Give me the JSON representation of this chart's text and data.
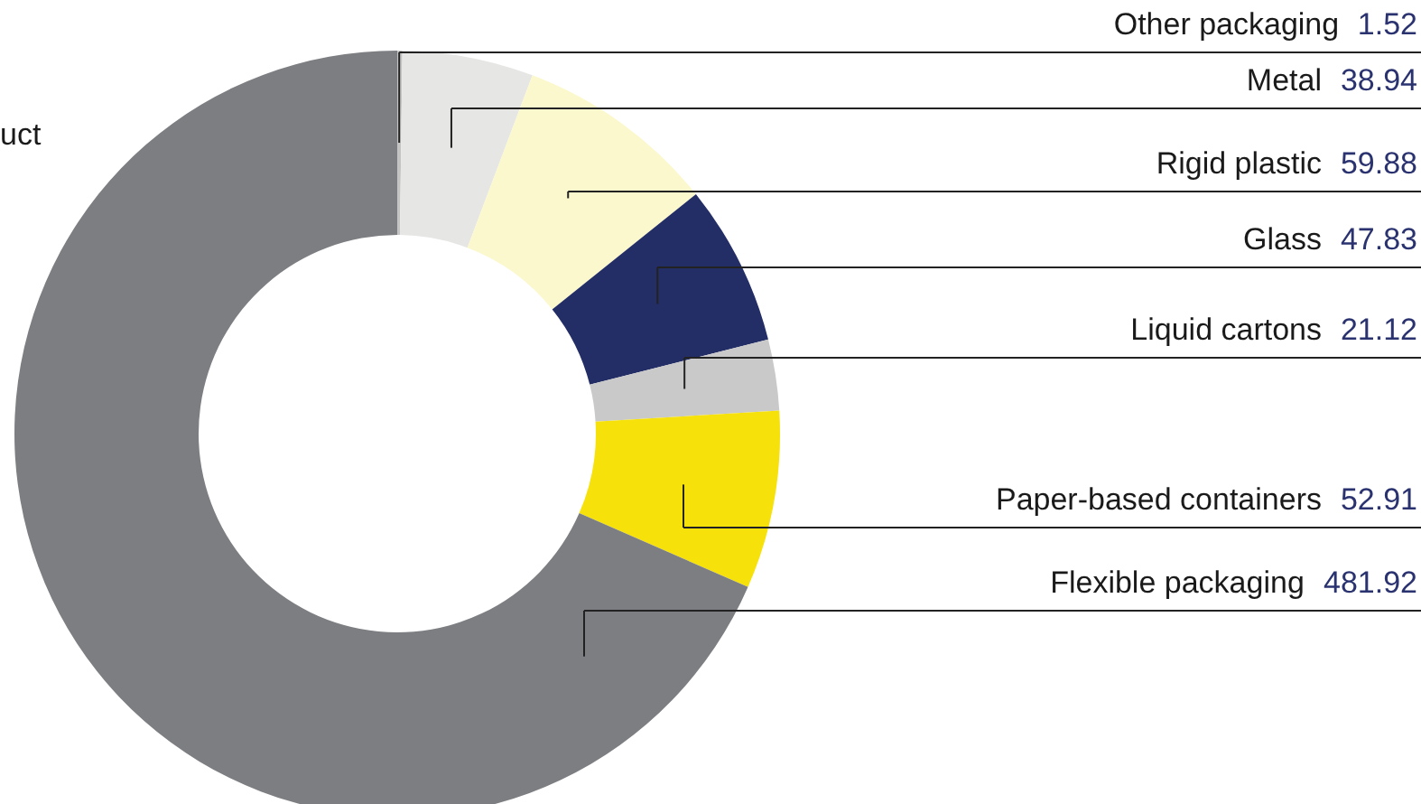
{
  "chart_data": {
    "type": "donut",
    "categories": [
      "Other packaging",
      "Metal",
      "Rigid plastic",
      "Glass",
      "Liquid cartons",
      "Paper-based containers",
      "Flexible packaging"
    ],
    "values": [
      1.52,
      38.94,
      59.88,
      47.83,
      21.12,
      52.91,
      481.92
    ],
    "colors": [
      "#c4c4c4",
      "#e6e7e5",
      "#fbf8cd",
      "#232d66",
      "#c9c9c9",
      "#f6e20a",
      "#7d7e82"
    ],
    "data_labels": true,
    "annotations": [
      "uct"
    ]
  }
}
